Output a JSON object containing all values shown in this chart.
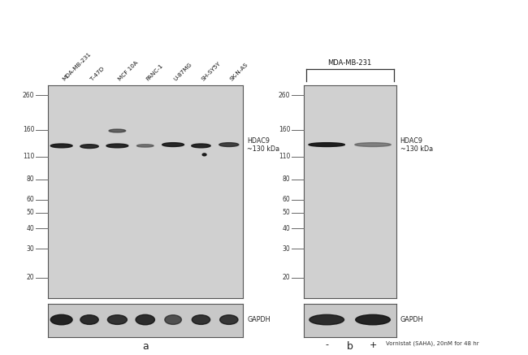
{
  "panel_a": {
    "lane_labels": [
      "MDA-MB-231",
      "T-47D",
      "MCF 10A",
      "PANC-1",
      "U-87MG",
      "SH-SY5Y",
      "SK-N-AS"
    ],
    "mw_markers": [
      260,
      160,
      110,
      80,
      60,
      50,
      40,
      30,
      20
    ],
    "hdac9_label": "HDAC9\n~130 kDa",
    "gapdh_label": "GAPDH"
  },
  "panel_b": {
    "lane_labels": [
      "-",
      "+"
    ],
    "bracket_label": "MDA-MB-231",
    "mw_markers": [
      260,
      160,
      110,
      80,
      60,
      50,
      40,
      30,
      20
    ],
    "hdac9_label": "HDAC9\n~130 kDa",
    "gapdh_label": "GAPDH",
    "vorinostat_label": "Vornistat (SAHA), 20nM for 48 hr"
  },
  "bg_color": "#ffffff",
  "gel_bg_color": "#d0d0d0",
  "gapdh_bg_color": "#c8c8c8",
  "band_color": "#1a1a1a",
  "label_a": "a",
  "label_b": "b"
}
